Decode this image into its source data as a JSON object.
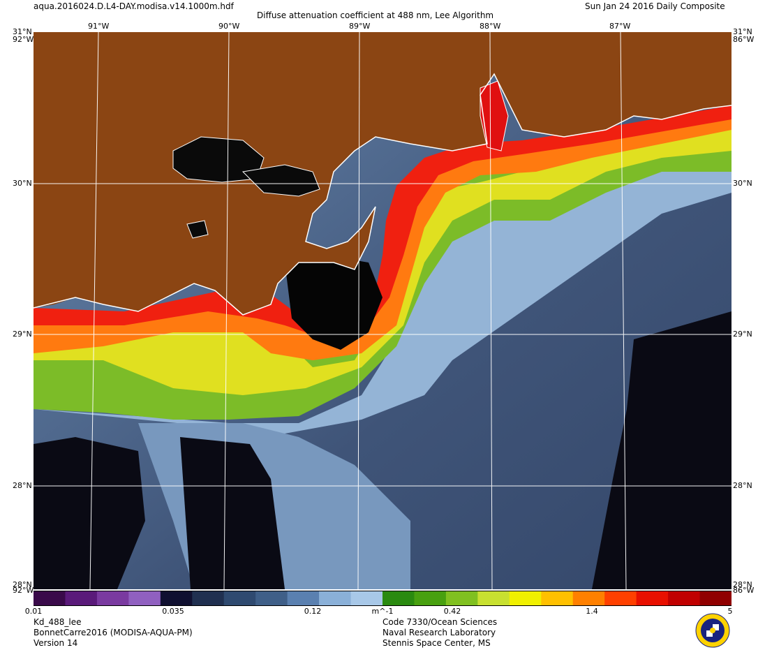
{
  "header": {
    "filename": "aqua.2016024.D.L4-DAY.modisa.v14.1000m.hdf",
    "title": "Diffuse attenuation coefficient at 488 nm, Lee Algorithm",
    "date": "Sun Jan 24 2016 Daily Composite"
  },
  "lon_labels": [
    "91°W",
    "90°W",
    "89°W",
    "88°W",
    "87°W"
  ],
  "lat_labels": [
    "30°N",
    "29°N",
    "28°N"
  ],
  "corner_labels": {
    "top_left": "31°N",
    "top_left_b": "92°W",
    "top_right": "31°N",
    "top_right_b": "86°W",
    "bottom_left": "28°N",
    "bottom_left_b": "92°W",
    "bottom_right": "28°N",
    "bottom_right_b": "86°W"
  },
  "colorbar": {
    "ticks": [
      "0.01",
      "0.035",
      "0.12",
      "m^-1",
      "0.42",
      "1.4",
      "5"
    ],
    "colors": [
      "#3a0a4a",
      "#5a1a7a",
      "#7a3aa0",
      "#9060c0",
      "#101030",
      "#203050",
      "#2f4a70",
      "#3f5f88",
      "#5a80b0",
      "#8ab0d8",
      "#a8c8e8",
      "#2a8a10",
      "#48a010",
      "#80c020",
      "#c8e030",
      "#f0f000",
      "#ffc000",
      "#ff8000",
      "#ff4000",
      "#e81000",
      "#c00000",
      "#900000"
    ]
  },
  "footer": {
    "left_line1": "Kd_488_lee",
    "left_line2": "BonnetCarre2016 (MODISA-AQUA-PM)",
    "left_line3": "Version 14",
    "center_line1": "Code 7330/Ocean Sciences",
    "center_line2": "Naval Research Laboratory",
    "center_line3": "Stennis Space Center, MS"
  },
  "map_colors": {
    "land": "#8b4513",
    "coast": "#ffffff",
    "grid": "#ffffff",
    "no_data": "#000000",
    "deep_water": "#3a4e6e",
    "mid_water": "#6a8ab0",
    "light_water": "#9ab8d8"
  }
}
